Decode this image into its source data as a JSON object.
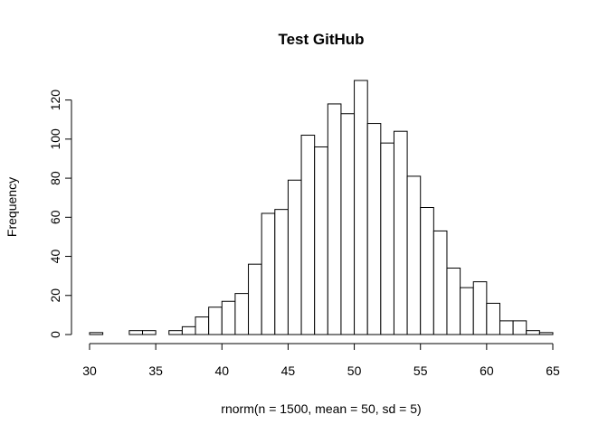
{
  "chart_data": {
    "type": "bar",
    "title": "Test GitHub",
    "xlabel": "rnorm(n = 1500, mean = 50, sd = 5)",
    "ylabel": "Frequency",
    "bin_width": 1,
    "bins": [
      {
        "x0": 30,
        "x1": 31,
        "count": 1
      },
      {
        "x0": 31,
        "x1": 32,
        "count": 0
      },
      {
        "x0": 32,
        "x1": 33,
        "count": 0
      },
      {
        "x0": 33,
        "x1": 34,
        "count": 2
      },
      {
        "x0": 34,
        "x1": 35,
        "count": 2
      },
      {
        "x0": 35,
        "x1": 36,
        "count": 0
      },
      {
        "x0": 36,
        "x1": 37,
        "count": 2
      },
      {
        "x0": 37,
        "x1": 38,
        "count": 4
      },
      {
        "x0": 38,
        "x1": 39,
        "count": 9
      },
      {
        "x0": 39,
        "x1": 40,
        "count": 14
      },
      {
        "x0": 40,
        "x1": 41,
        "count": 17
      },
      {
        "x0": 41,
        "x1": 42,
        "count": 21
      },
      {
        "x0": 42,
        "x1": 43,
        "count": 36
      },
      {
        "x0": 43,
        "x1": 44,
        "count": 62
      },
      {
        "x0": 44,
        "x1": 45,
        "count": 64
      },
      {
        "x0": 45,
        "x1": 46,
        "count": 79
      },
      {
        "x0": 46,
        "x1": 47,
        "count": 102
      },
      {
        "x0": 47,
        "x1": 48,
        "count": 96
      },
      {
        "x0": 48,
        "x1": 49,
        "count": 118
      },
      {
        "x0": 49,
        "x1": 50,
        "count": 113
      },
      {
        "x0": 50,
        "x1": 51,
        "count": 130
      },
      {
        "x0": 51,
        "x1": 52,
        "count": 108
      },
      {
        "x0": 52,
        "x1": 53,
        "count": 98
      },
      {
        "x0": 53,
        "x1": 54,
        "count": 104
      },
      {
        "x0": 54,
        "x1": 55,
        "count": 81
      },
      {
        "x0": 55,
        "x1": 56,
        "count": 65
      },
      {
        "x0": 56,
        "x1": 57,
        "count": 53
      },
      {
        "x0": 57,
        "x1": 58,
        "count": 34
      },
      {
        "x0": 58,
        "x1": 59,
        "count": 24
      },
      {
        "x0": 59,
        "x1": 60,
        "count": 27
      },
      {
        "x0": 60,
        "x1": 61,
        "count": 16
      },
      {
        "x0": 61,
        "x1": 62,
        "count": 7
      },
      {
        "x0": 62,
        "x1": 63,
        "count": 7
      },
      {
        "x0": 63,
        "x1": 64,
        "count": 2
      },
      {
        "x0": 64,
        "x1": 65,
        "count": 1
      }
    ],
    "xlim": [
      30,
      65
    ],
    "ylim": [
      0,
      130
    ],
    "x_ticks": [
      30,
      35,
      40,
      45,
      50,
      55,
      60,
      65
    ],
    "y_ticks": [
      0,
      20,
      40,
      60,
      80,
      100,
      120
    ],
    "grid": false,
    "bar_fill": "#ffffff",
    "bar_stroke": "#000000"
  }
}
